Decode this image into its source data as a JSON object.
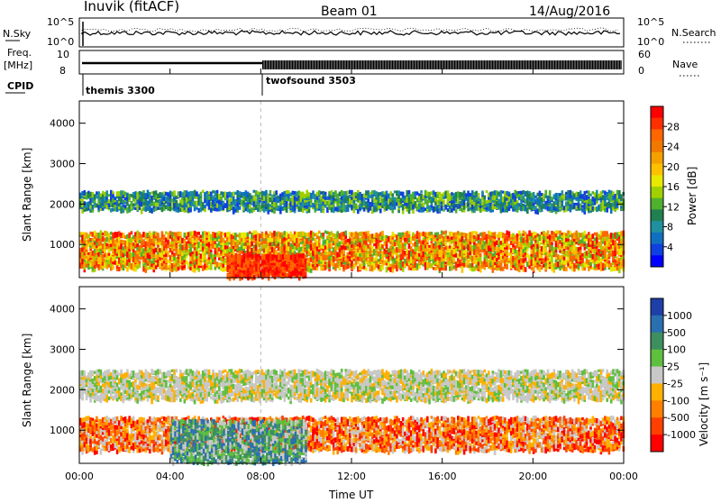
{
  "header": {
    "station": "Inuvik (fitACF)",
    "beam": "Beam 01",
    "date": "14/Aug/2016"
  },
  "top_panels": {
    "nsky_label": "N.Sky",
    "nsky_ticks": [
      "10^5",
      "10^0"
    ],
    "nsearch_label": "N.Search",
    "freq_label_line1": "Freq.",
    "freq_label_line2": "[MHz]",
    "freq_ticks": [
      "10",
      "8"
    ],
    "nave_label": "Nave",
    "nave_ticks": [
      "60",
      "0"
    ],
    "cpid_label": "CPID",
    "cpid_segments": [
      {
        "name": "themis 3300",
        "start_hour": 0
      },
      {
        "name": "twofsound 3503",
        "start_hour": 8
      }
    ]
  },
  "colorbars": {
    "power": {
      "label": "Power [dB]",
      "ticks": [
        "28",
        "24",
        "20",
        "16",
        "12",
        "8",
        "4"
      ],
      "colors": [
        "#ff0000",
        "#ff2f00",
        "#ff6600",
        "#f07800",
        "#f4a000",
        "#ffc000",
        "#e8e800",
        "#a0d000",
        "#50b030",
        "#208050",
        "#2090a0",
        "#1070c0",
        "#1040e0",
        "#0000ff"
      ]
    },
    "velocity": {
      "label": "Velocity [m s⁻¹]",
      "ticks": [
        "1000",
        "500",
        "100",
        "25",
        "-25",
        "-100",
        "-500",
        "-1000"
      ],
      "colors": [
        "#1f3fa8",
        "#2a6fb0",
        "#3e8f60",
        "#5fbf3f",
        "#c8c8c8",
        "#ffb000",
        "#ff8000",
        "#ff4000",
        "#ff0000"
      ]
    }
  },
  "chart_data": [
    {
      "type": "heatmap",
      "name": "power",
      "ylabel": "Slant Range [km]",
      "yticks": [
        1000,
        2000,
        3000,
        4000
      ],
      "ylim": [
        180,
        4550
      ],
      "xlim": [
        0,
        24
      ],
      "xticks": [
        "00:00",
        "04:00",
        "08:00",
        "12:00",
        "16:00",
        "20:00",
        "00:00"
      ],
      "bands": [
        {
          "x": [
            0,
            24
          ],
          "range_km": [
            1850,
            2300
          ],
          "level": "12-20 dB"
        },
        {
          "x": [
            0,
            24
          ],
          "range_km": [
            400,
            1300
          ],
          "level": "16-28 dB"
        },
        {
          "x": [
            6.5,
            10
          ],
          "range_km": [
            200,
            700
          ],
          "level": "28 dB"
        }
      ]
    },
    {
      "type": "heatmap",
      "name": "velocity",
      "ylabel": "Slant Range [km]",
      "xlabel": "Time UT",
      "yticks": [
        1000,
        2000,
        3000,
        4000
      ],
      "ylim": [
        180,
        4550
      ],
      "xlim": [
        0,
        24
      ],
      "xticks": [
        "00:00",
        "04:00",
        "08:00",
        "12:00",
        "16:00",
        "20:00",
        "00:00"
      ],
      "bands": [
        {
          "x": [
            0,
            24
          ],
          "range_km": [
            1750,
            2450
          ],
          "level": "-25 to 25 m/s"
        },
        {
          "x": [
            0,
            24
          ],
          "range_km": [
            500,
            1300
          ],
          "level": "-100 to -500 m/s"
        },
        {
          "x": [
            4,
            10
          ],
          "range_km": [
            200,
            1200
          ],
          "level": "100 to 500 m/s"
        }
      ]
    }
  ]
}
